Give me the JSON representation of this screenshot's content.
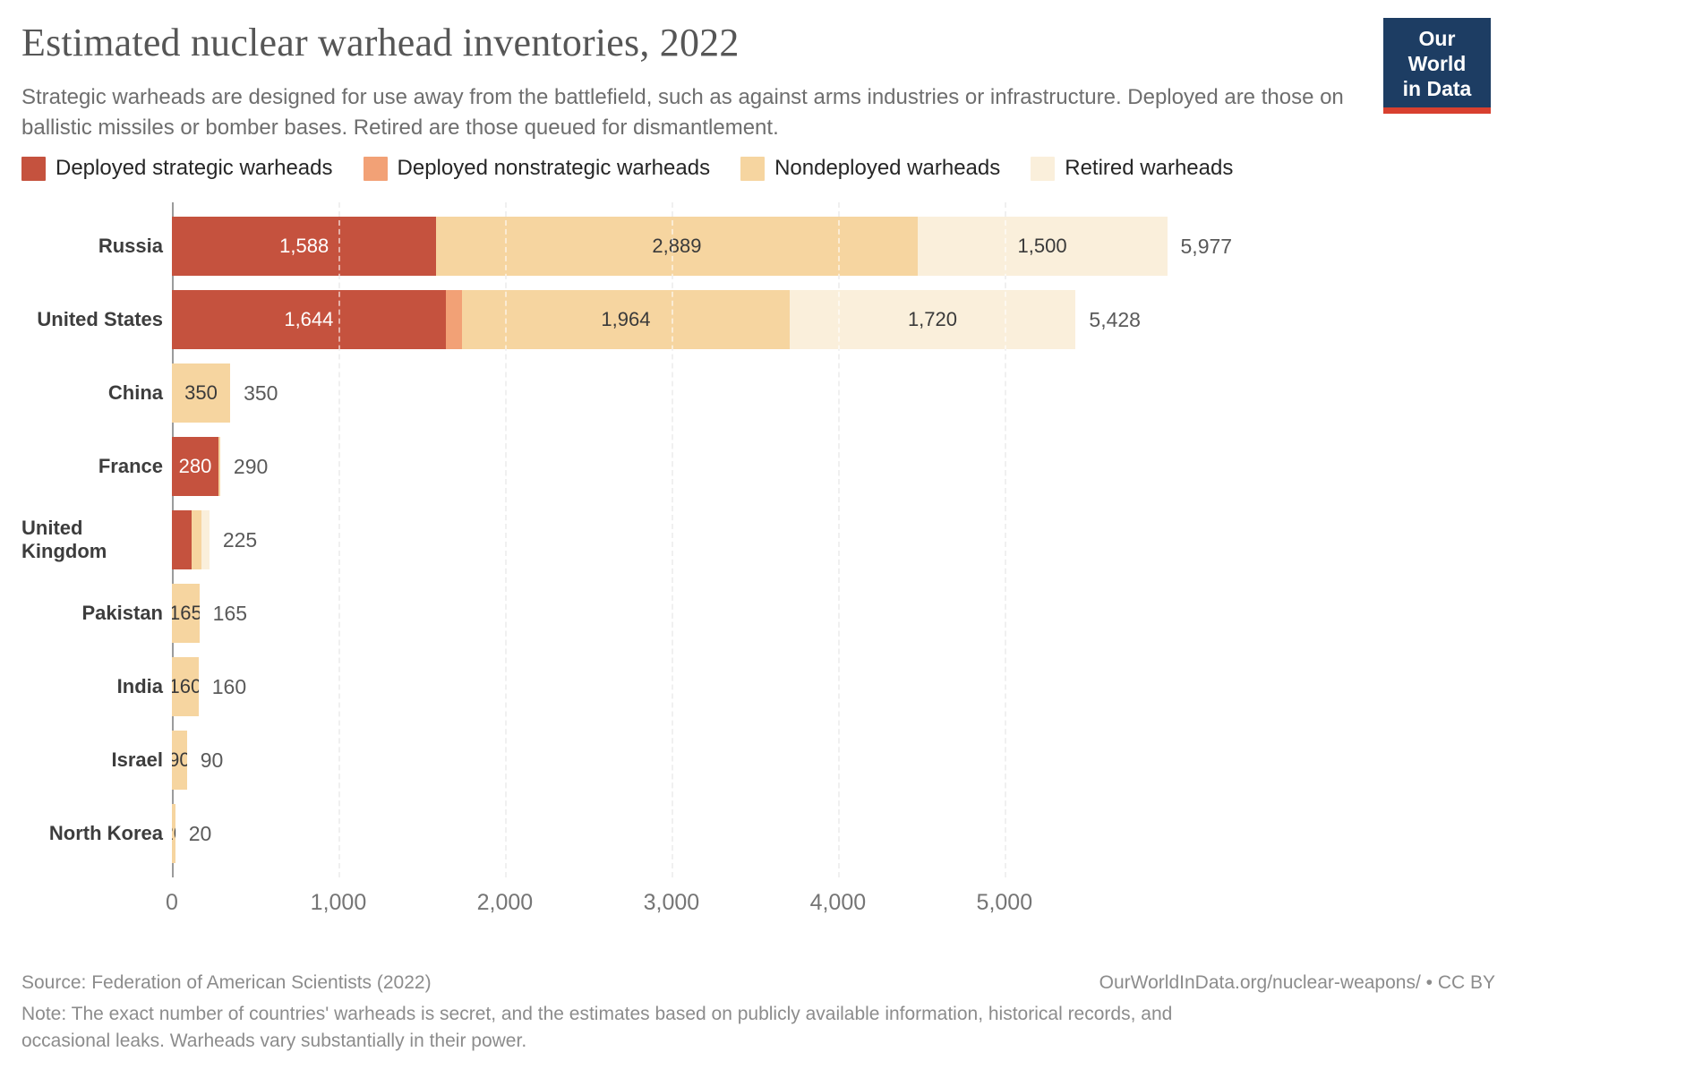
{
  "header": {
    "title": "Estimated nuclear warhead inventories, 2022",
    "subtitle": "Strategic warheads are designed for use away from the battlefield, such as against arms industries or infrastructure. Deployed are those on ballistic missiles or bomber bases. Retired are those queued for dismantlement.",
    "logo": {
      "line1": "Our World",
      "line2": "in Data",
      "bg_color": "#1d3d63",
      "accent_color": "#d8402f"
    }
  },
  "legend": {
    "items": [
      {
        "key": "deployed_strategic",
        "label": "Deployed strategic warheads",
        "color": "#c5523e"
      },
      {
        "key": "deployed_nonstrategic",
        "label": "Deployed nonstrategic warheads",
        "color": "#f2a176"
      },
      {
        "key": "nondeployed",
        "label": "Nondeployed warheads",
        "color": "#f6d5a0"
      },
      {
        "key": "retired",
        "label": "Retired warheads",
        "color": "#faefdb"
      }
    ]
  },
  "chart_data": {
    "type": "bar",
    "orientation": "horizontal",
    "stacked": true,
    "title": "Estimated nuclear warhead inventories, 2022",
    "xlabel": "",
    "ylabel": "",
    "x_axis": {
      "max_rendered": 6200,
      "grid": "dashed",
      "ticks": [
        {
          "value": 0,
          "label": "0"
        },
        {
          "value": 1000,
          "label": "1,000"
        },
        {
          "value": 2000,
          "label": "2,000"
        },
        {
          "value": 3000,
          "label": "3,000"
        },
        {
          "value": 4000,
          "label": "4,000"
        },
        {
          "value": 5000,
          "label": "5,000"
        }
      ]
    },
    "series_keys": [
      "deployed_strategic",
      "deployed_nonstrategic",
      "nondeployed",
      "retired"
    ],
    "rows": [
      {
        "country": "Russia",
        "segments": [
          {
            "type": "deployed_strategic",
            "value": 1588,
            "label": "1,588"
          },
          {
            "type": "nondeployed",
            "value": 2889,
            "label": "2,889"
          },
          {
            "type": "retired",
            "value": 1500,
            "label": "1,500"
          }
        ],
        "total": 5977,
        "total_label": "5,977"
      },
      {
        "country": "United States",
        "segments": [
          {
            "type": "deployed_strategic",
            "value": 1644,
            "label": "1,644"
          },
          {
            "type": "deployed_nonstrategic",
            "value": 100,
            "label": ""
          },
          {
            "type": "nondeployed",
            "value": 1964,
            "label": "1,964"
          },
          {
            "type": "retired",
            "value": 1720,
            "label": "1,720"
          }
        ],
        "total": 5428,
        "total_label": "5,428"
      },
      {
        "country": "China",
        "segments": [
          {
            "type": "nondeployed",
            "value": 350,
            "label": "350"
          }
        ],
        "total": 350,
        "total_label": "350"
      },
      {
        "country": "France",
        "segments": [
          {
            "type": "deployed_strategic",
            "value": 280,
            "label": "280"
          },
          {
            "type": "nondeployed",
            "value": 10,
            "label": ""
          }
        ],
        "total": 290,
        "total_label": "290"
      },
      {
        "country": "United Kingdom",
        "segments": [
          {
            "type": "deployed_strategic",
            "value": 120,
            "label": ""
          },
          {
            "type": "nondeployed",
            "value": 60,
            "label": ""
          },
          {
            "type": "retired",
            "value": 45,
            "label": ""
          }
        ],
        "total": 225,
        "total_label": "225"
      },
      {
        "country": "Pakistan",
        "segments": [
          {
            "type": "nondeployed",
            "value": 165,
            "label": "165"
          }
        ],
        "total": 165,
        "total_label": "165"
      },
      {
        "country": "India",
        "segments": [
          {
            "type": "nondeployed",
            "value": 160,
            "label": "160"
          }
        ],
        "total": 160,
        "total_label": "160"
      },
      {
        "country": "Israel",
        "segments": [
          {
            "type": "nondeployed",
            "value": 90,
            "label": "90"
          }
        ],
        "total": 90,
        "total_label": "90"
      },
      {
        "country": "North Korea",
        "segments": [
          {
            "type": "nondeployed",
            "value": 20,
            "label": "20"
          }
        ],
        "total": 20,
        "total_label": "20"
      }
    ]
  },
  "footer": {
    "source": "Source: Federation of American Scientists (2022)",
    "link": "OurWorldInData.org/nuclear-weapons/ • CC BY",
    "note": "Note: The exact number of countries' warheads is secret, and the estimates based on publicly available information, historical records, and occasional leaks. Warheads vary substantially in their power."
  }
}
